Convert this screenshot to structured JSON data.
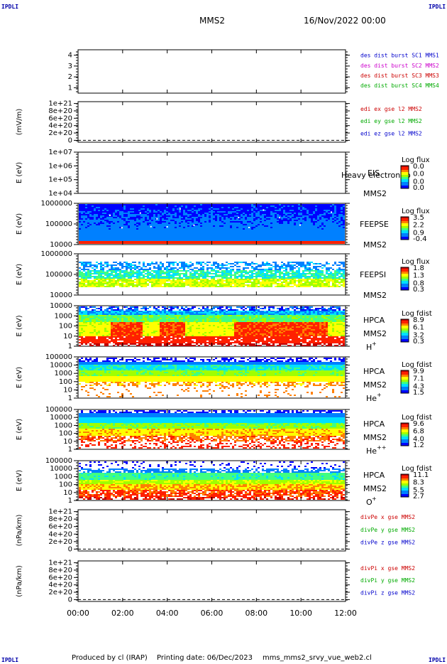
{
  "header": {
    "spacecraft": "MMS2",
    "datetime": "16/Nov/2022 00:00"
  },
  "corners": {
    "tl": "IPDLI",
    "tr": "IPDLI",
    "bl": "IPDLI",
    "br": "IPDLI"
  },
  "footer": {
    "produced": "Produced by cl (IRAP)",
    "printing": "Printing date: 06/Dec/2023",
    "script": "mms_mms2_srvy_vue_web2.cl"
  },
  "time_axis": {
    "labels": [
      "00:00",
      "02:00",
      "04:00",
      "06:00",
      "08:00",
      "10:00",
      "12:00"
    ]
  },
  "chart_data": [
    {
      "type": "line",
      "id": "des_burst",
      "ylabel": "",
      "yticks": [
        "1",
        "2",
        "3",
        "4"
      ],
      "ylim": [
        0.5,
        4.5
      ],
      "legend": [
        {
          "text": "des dist burst SC1 MMS1",
          "color": "#0000cc"
        },
        {
          "text": "des dist burst SC2 MMS2",
          "color": "#cc00cc"
        },
        {
          "text": "des dist burst SC3 MMS3",
          "color": "#cc0000"
        },
        {
          "text": "des dist burst SC4 MMS4",
          "color": "#00aa00"
        }
      ]
    },
    {
      "type": "line",
      "id": "edi",
      "ylabel": "(mV/m)",
      "yticks": [
        "0",
        "2e+20",
        "4e+20",
        "6e+20",
        "8e+20",
        "1e+21"
      ],
      "ylim": [
        -5e+19,
        1.05e+21
      ],
      "zero_line": true,
      "legend": [
        {
          "text": "edi ex gse l2 MMS2",
          "color": "#cc0000"
        },
        {
          "text": "edi ey gse l2 MMS2",
          "color": "#00aa00"
        },
        {
          "text": "edi ez gse l2 MMS2",
          "color": "#0000cc"
        }
      ]
    },
    {
      "type": "heatmap",
      "id": "eis",
      "ylabel": "E (eV)",
      "yticks": [
        "1e+04",
        "1e+05",
        "1e+06",
        "1e+07"
      ],
      "labels": [
        "EIS",
        "MMS2"
      ],
      "overlay": "Heavy electron to",
      "colorbar": {
        "title": "Log flux",
        "values": [
          "0.0",
          "0.0",
          "0.0",
          "0.0"
        ]
      }
    },
    {
      "type": "heatmap",
      "id": "feepse",
      "ylabel": "E (eV)",
      "yticks": [
        "10000",
        "100000",
        "1000000"
      ],
      "labels": [
        "FEEPSE",
        "MMS2"
      ],
      "colorbar": {
        "title": "Log flux",
        "values": [
          "3.5",
          "2.2",
          "0.9",
          "-0.4"
        ]
      }
    },
    {
      "type": "heatmap",
      "id": "feepsi",
      "ylabel": "E (eV)",
      "yticks": [
        "10000",
        "100000",
        "1000000"
      ],
      "labels": [
        "FEEPSI",
        "MMS2"
      ],
      "colorbar": {
        "title": "Log flux",
        "values": [
          "1.8",
          "1.3",
          "0.8",
          "0.3"
        ]
      }
    },
    {
      "type": "heatmap",
      "id": "hpca_h",
      "ylabel": "E (eV)",
      "yticks": [
        "1",
        "10",
        "100",
        "1000",
        "10000"
      ],
      "labels": [
        "HPCA",
        "MMS2"
      ],
      "species": "H",
      "charge": "+",
      "colorbar": {
        "title": "Log fdist",
        "values": [
          "8.9",
          "6.1",
          "3.2",
          "0.3"
        ]
      }
    },
    {
      "type": "heatmap",
      "id": "hpca_he",
      "ylabel": "E (eV)",
      "yticks": [
        "1",
        "10",
        "100",
        "1000",
        "10000",
        "100000"
      ],
      "labels": [
        "HPCA",
        "MMS2"
      ],
      "species": "He",
      "charge": "+",
      "colorbar": {
        "title": "Log fdist",
        "values": [
          "9.9",
          "7.1",
          "4.3",
          "1.5"
        ]
      }
    },
    {
      "type": "heatmap",
      "id": "hpca_hepp",
      "ylabel": "E (eV)",
      "yticks": [
        "1",
        "10",
        "100",
        "1000",
        "10000",
        "100000"
      ],
      "labels": [
        "HPCA",
        "MMS2"
      ],
      "species": "He",
      "charge": "++",
      "colorbar": {
        "title": "Log fdist",
        "values": [
          "9.6",
          "6.8",
          "4.0",
          "1.2"
        ]
      }
    },
    {
      "type": "heatmap",
      "id": "hpca_o",
      "ylabel": "E (eV)",
      "yticks": [
        "1",
        "10",
        "100",
        "1000",
        "10000",
        "100000"
      ],
      "labels": [
        "HPCA",
        "MMS2"
      ],
      "species": "O",
      "charge": "+",
      "colorbar": {
        "title": "Log fdist",
        "values": [
          "11.1",
          "8.3",
          "5.5",
          "2.7"
        ]
      }
    },
    {
      "type": "line",
      "id": "divpe",
      "ylabel": "(nPa/km)",
      "yticks": [
        "0",
        "2e+20",
        "4e+20",
        "6e+20",
        "8e+20",
        "1e+21"
      ],
      "ylim": [
        -5e+19,
        1.05e+21
      ],
      "zero_line": true,
      "legend": [
        {
          "text": "divPe x gse MMS2",
          "color": "#cc0000"
        },
        {
          "text": "divPe y gse MMS2",
          "color": "#00aa00"
        },
        {
          "text": "divPe z gse MMS2",
          "color": "#0000cc"
        }
      ]
    },
    {
      "type": "line",
      "id": "divpi",
      "ylabel": "(nPa/km)",
      "yticks": [
        "0",
        "2e+20",
        "4e+20",
        "6e+20",
        "8e+20",
        "1e+21"
      ],
      "ylim": [
        -5e+19,
        1.05e+21
      ],
      "zero_line": true,
      "legend": [
        {
          "text": "divPi x gse MMS2",
          "color": "#cc0000"
        },
        {
          "text": "divPi y gse MMS2",
          "color": "#00aa00"
        },
        {
          "text": "divPi z gse MMS2",
          "color": "#0000cc"
        }
      ]
    }
  ]
}
